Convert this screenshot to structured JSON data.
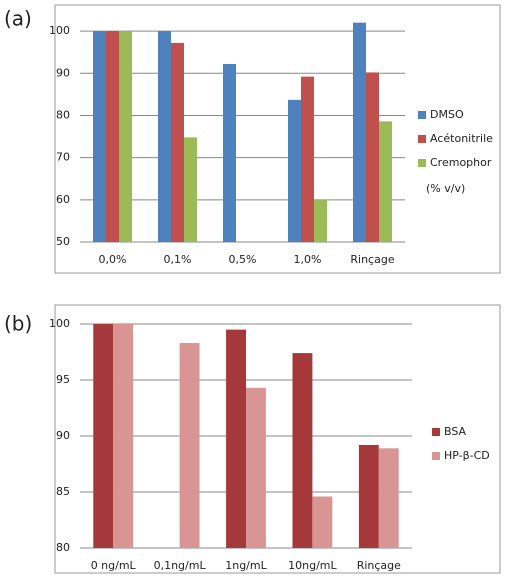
{
  "chart_data": [
    {
      "type": "bar",
      "label": "(a)",
      "annotation": "(% v/v)",
      "categories": [
        "0,0%",
        "0,1%",
        "0,5%",
        "1,0%",
        "Rinçage"
      ],
      "series": [
        {
          "name": "DMSO",
          "color": "#4f81bd",
          "values": [
            100,
            100,
            92.2,
            83.7,
            102
          ]
        },
        {
          "name": "Acétonitrile",
          "color": "#c0504d",
          "values": [
            100,
            97.2,
            null,
            89.2,
            90.2
          ]
        },
        {
          "name": "Cremophor",
          "color": "#9bbb59",
          "values": [
            100,
            74.8,
            null,
            60,
            78.6
          ]
        }
      ],
      "ylim": [
        50,
        105
      ],
      "yticks": [
        50,
        60,
        70,
        80,
        90,
        100
      ],
      "grid": true
    },
    {
      "type": "bar",
      "label": "(b)",
      "categories": [
        "0 ng/mL",
        "0,1ng/mL",
        "1ng/mL",
        "10ng/mL",
        "Rinçage"
      ],
      "series": [
        {
          "name": "BSA",
          "color": "#a5383a",
          "values": [
            100,
            null,
            99.5,
            97.4,
            89.2
          ]
        },
        {
          "name": "HP-β-CD",
          "color": "#d99594",
          "values": [
            100,
            98.3,
            94.3,
            84.6,
            88.9
          ]
        }
      ],
      "ylim": [
        80,
        100
      ],
      "yticks": [
        80,
        85,
        90,
        95,
        100
      ],
      "grid": true
    }
  ]
}
